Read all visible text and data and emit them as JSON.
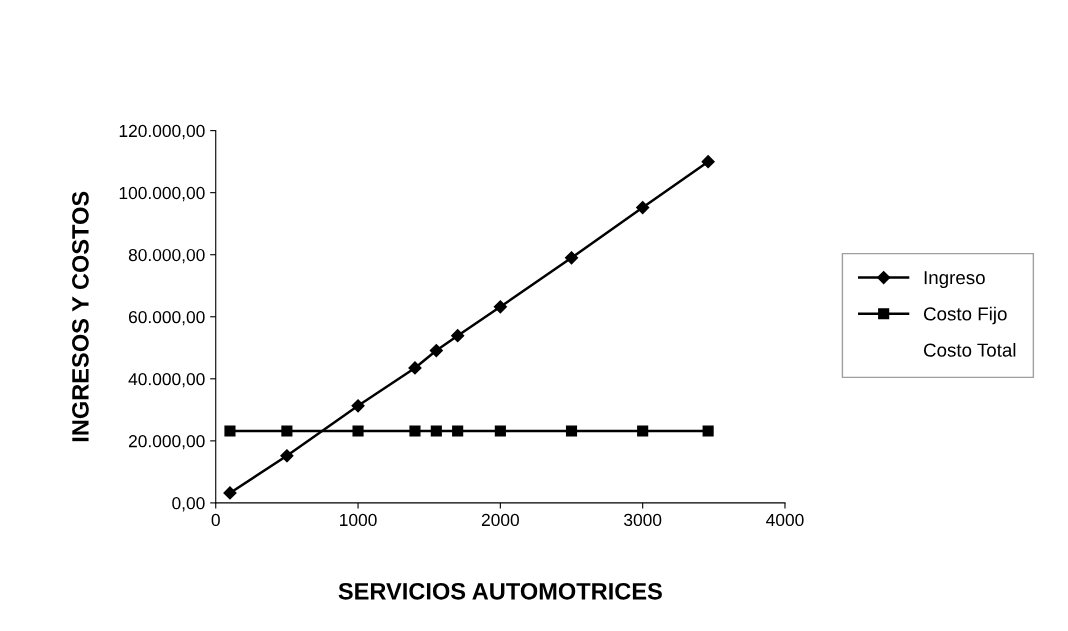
{
  "chart_data": {
    "type": "line",
    "xlabel": "SERVICIOS AUTOMOTRICES",
    "ylabel": "INGRESOS Y COSTOS",
    "x": [
      100,
      500,
      1000,
      1400,
      1550,
      1700,
      2000,
      2500,
      3000,
      3460
    ],
    "series": [
      {
        "name": "Ingreso",
        "color": "#000000",
        "marker": "diamond",
        "values": [
          3200,
          15200,
          31300,
          43500,
          49100,
          53900,
          63200,
          79000,
          95200,
          110000
        ]
      },
      {
        "name": "Costo Fijo",
        "color": "#000000",
        "marker": "square",
        "values": [
          23200,
          23200,
          23200,
          23200,
          23200,
          23200,
          23200,
          23200,
          23200,
          23200
        ]
      }
    ],
    "annotations": [
      "Costo Total"
    ],
    "xlim": [
      0,
      4000
    ],
    "xticks": [
      0,
      1000,
      2000,
      3000,
      4000
    ],
    "ylim": [
      0,
      120000
    ],
    "yticks": [
      {
        "value": 0,
        "label": "0,00"
      },
      {
        "value": 20000,
        "label": "20.000,00"
      },
      {
        "value": 40000,
        "label": "40.000,00"
      },
      {
        "value": 60000,
        "label": "60.000,00"
      },
      {
        "value": 80000,
        "label": "80.000,00"
      },
      {
        "value": 100000,
        "label": "100.000,00"
      },
      {
        "value": 120000,
        "label": "120.000,00"
      }
    ],
    "line_style": "solid",
    "legend": "right"
  }
}
